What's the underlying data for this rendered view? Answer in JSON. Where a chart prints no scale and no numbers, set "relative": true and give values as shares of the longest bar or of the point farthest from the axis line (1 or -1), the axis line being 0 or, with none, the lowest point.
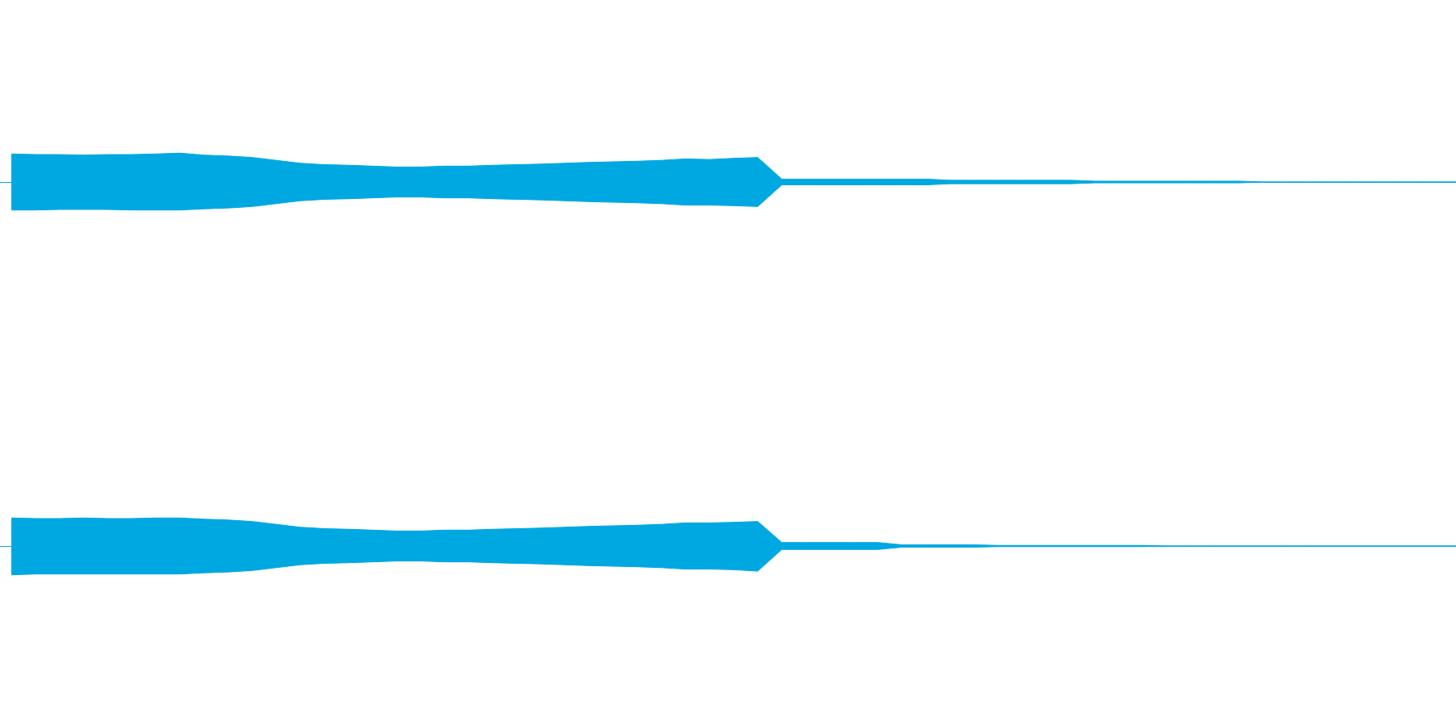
{
  "chart_data": [
    {
      "type": "area",
      "relative": true,
      "ref_lines": [
        {
          "axis": "y",
          "value": 0,
          "color": "#00a8e1"
        }
      ],
      "categories": [
        null,
        null,
        null,
        null,
        null,
        null,
        null,
        null,
        null,
        null,
        null,
        null,
        null,
        null,
        null,
        null,
        null,
        null,
        null,
        null,
        null,
        null,
        null,
        null,
        null,
        null,
        null,
        null,
        null,
        null,
        null,
        null,
        null,
        null,
        null,
        null,
        null,
        null,
        null,
        null,
        null,
        null,
        null,
        null,
        null,
        null,
        null,
        null,
        null,
        null,
        null,
        null,
        null,
        null,
        null,
        null,
        null,
        null,
        null,
        null,
        null
      ],
      "series": [
        {
          "color": "#00a8e1",
          "values": [
            0.97,
            0.95,
            0.95,
            0.93,
            0.95,
            0.95,
            0.97,
            1.0,
            0.93,
            0.9,
            0.85,
            0.75,
            0.65,
            0.6,
            0.58,
            0.55,
            0.52,
            0.52,
            0.55,
            0.55,
            0.58,
            0.6,
            0.62,
            0.65,
            0.68,
            0.7,
            0.72,
            0.75,
            0.8,
            0.78,
            0.82,
            0.85,
            0.1,
            0.1,
            0.1,
            0.1,
            0.1,
            0.1,
            0.1,
            0.06,
            0.06,
            0.06,
            0.06,
            0.06,
            0.06,
            0.03,
            0.03,
            0.03,
            0.03,
            0.03,
            0.03,
            0.03,
            0,
            0,
            0,
            0,
            0,
            0,
            0,
            0,
            0
          ]
        },
        {
          "color": "#00a8e1",
          "values": [
            -0.97,
            -0.97,
            -0.95,
            -0.95,
            -0.95,
            -0.97,
            -0.97,
            -0.97,
            -0.93,
            -0.9,
            -0.85,
            -0.75,
            -0.65,
            -0.6,
            -0.58,
            -0.55,
            -0.52,
            -0.52,
            -0.55,
            -0.55,
            -0.58,
            -0.6,
            -0.62,
            -0.65,
            -0.68,
            -0.7,
            -0.72,
            -0.75,
            -0.8,
            -0.8,
            -0.82,
            -0.85,
            -0.1,
            -0.1,
            -0.1,
            -0.1,
            -0.1,
            -0.1,
            -0.1,
            -0.06,
            -0.06,
            -0.06,
            -0.06,
            -0.06,
            -0.06,
            -0.03,
            -0.03,
            -0.03,
            -0.03,
            -0.03,
            -0.03,
            -0.03,
            0,
            0,
            0,
            0,
            0,
            0,
            0,
            0,
            0
          ]
        }
      ]
    },
    {
      "type": "area",
      "relative": true,
      "ref_lines": [
        {
          "axis": "y",
          "value": 0,
          "color": "#00a8e1"
        }
      ],
      "categories": [
        null,
        null,
        null,
        null,
        null,
        null,
        null,
        null,
        null,
        null,
        null,
        null,
        null,
        null,
        null,
        null,
        null,
        null,
        null,
        null,
        null,
        null,
        null,
        null,
        null,
        null,
        null,
        null,
        null,
        null,
        null,
        null,
        null,
        null,
        null,
        null,
        null,
        null,
        null,
        null,
        null,
        null,
        null,
        null,
        null,
        null,
        null,
        null,
        null,
        null,
        null,
        null,
        null,
        null,
        null,
        null,
        null,
        null,
        null,
        null,
        null
      ],
      "series": [
        {
          "color": "#00a8e1",
          "values": [
            0.97,
            0.95,
            0.95,
            0.97,
            0.95,
            0.95,
            0.97,
            0.97,
            0.93,
            0.9,
            0.85,
            0.75,
            0.65,
            0.6,
            0.58,
            0.55,
            0.52,
            0.52,
            0.55,
            0.55,
            0.58,
            0.6,
            0.62,
            0.65,
            0.68,
            0.7,
            0.72,
            0.75,
            0.8,
            0.8,
            0.82,
            0.85,
            0.12,
            0.12,
            0.12,
            0.12,
            0.12,
            0.04,
            0.04,
            0.04,
            0.04,
            0.02,
            0.02,
            0.02,
            0.02,
            0.02,
            0.02,
            0.02,
            0,
            0,
            0,
            0,
            0,
            0,
            0,
            0,
            0,
            0,
            0,
            0,
            0
          ]
        },
        {
          "color": "#00a8e1",
          "values": [
            -1.0,
            -0.97,
            -0.97,
            -0.97,
            -0.97,
            -0.97,
            -0.97,
            -0.97,
            -0.93,
            -0.9,
            -0.85,
            -0.75,
            -0.65,
            -0.6,
            -0.58,
            -0.55,
            -0.52,
            -0.52,
            -0.55,
            -0.55,
            -0.58,
            -0.6,
            -0.62,
            -0.65,
            -0.68,
            -0.7,
            -0.72,
            -0.75,
            -0.8,
            -0.8,
            -0.82,
            -0.87,
            -0.12,
            -0.12,
            -0.12,
            -0.12,
            -0.12,
            -0.04,
            -0.04,
            -0.04,
            -0.04,
            -0.02,
            -0.02,
            -0.02,
            -0.02,
            -0.02,
            -0.02,
            -0.02,
            0,
            0,
            0,
            0,
            0,
            0,
            0,
            0,
            0,
            0,
            0,
            0,
            0
          ]
        }
      ]
    }
  ]
}
